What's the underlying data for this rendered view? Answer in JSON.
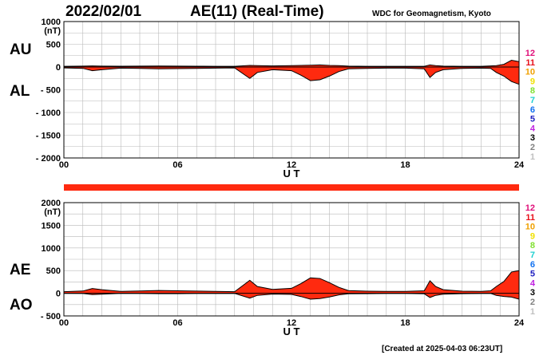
{
  "header": {
    "date": "2022/02/01",
    "title": "AE(11) (Real-Time)",
    "source": "WDC for Geomagnetism, Kyoto"
  },
  "footer": {
    "created": "[Created at 2025-04-03 06:23UT]"
  },
  "legend_levels": [
    {
      "label": "12",
      "color": "#e0107a"
    },
    {
      "label": "11",
      "color": "#e8101a"
    },
    {
      "label": "10",
      "color": "#f0a000"
    },
    {
      "label": "9",
      "color": "#f0e000"
    },
    {
      "label": "8",
      "color": "#80e030"
    },
    {
      "label": "7",
      "color": "#20d0d0"
    },
    {
      "label": "6",
      "color": "#1070f0"
    },
    {
      "label": "5",
      "color": "#2020c0"
    },
    {
      "label": "4",
      "color": "#c020e0"
    },
    {
      "label": "3",
      "color": "#000000"
    },
    {
      "label": "2",
      "color": "#808080"
    },
    {
      "label": "1",
      "color": "#c0c0c0"
    }
  ],
  "chart_data": [
    {
      "type": "area",
      "panel": "top",
      "labels": [
        "AU",
        "AL"
      ],
      "unit_label": "(nT)",
      "xlabel": "U T",
      "xticks": [
        "00",
        "06",
        "12",
        "18",
        "24"
      ],
      "xlim": [
        0,
        24
      ],
      "ylim": [
        -2000,
        1000
      ],
      "yticks": [
        "1000",
        "500",
        "0",
        "- 500",
        "- 1000",
        "- 1500",
        "- 2000"
      ],
      "fill_color": "#ff2a0f",
      "series": [
        {
          "name": "AU",
          "x": [
            0,
            1,
            1.5,
            2,
            3,
            4,
            5,
            6,
            7,
            8,
            9,
            9.8,
            10.2,
            11,
            12,
            12.5,
            13,
            13.5,
            14,
            14.5,
            15,
            16,
            17,
            18,
            19,
            19.3,
            19.6,
            20,
            21,
            22,
            22.5,
            22.8,
            23.2,
            23.6,
            24
          ],
          "values": [
            15,
            20,
            25,
            20,
            18,
            20,
            22,
            20,
            18,
            15,
            15,
            35,
            30,
            25,
            30,
            35,
            40,
            45,
            35,
            30,
            20,
            15,
            15,
            15,
            15,
            45,
            30,
            20,
            15,
            15,
            25,
            30,
            60,
            150,
            120
          ]
        },
        {
          "name": "AL",
          "x": [
            0,
            1,
            1.5,
            2,
            3,
            4,
            5,
            6,
            7,
            8,
            9,
            9.8,
            10.2,
            11,
            12,
            12.5,
            13,
            13.5,
            14,
            14.5,
            15,
            16,
            17,
            18,
            19,
            19.3,
            19.6,
            20,
            21,
            22,
            22.5,
            22.8,
            23.2,
            23.6,
            24
          ],
          "values": [
            -20,
            -30,
            -80,
            -60,
            -25,
            -30,
            -40,
            -35,
            -30,
            -25,
            -20,
            -250,
            -120,
            -60,
            -80,
            -180,
            -300,
            -280,
            -200,
            -100,
            -40,
            -30,
            -25,
            -25,
            -40,
            -230,
            -120,
            -60,
            -30,
            -25,
            -30,
            -120,
            -200,
            -320,
            -380
          ]
        }
      ]
    },
    {
      "type": "area",
      "panel": "bottom",
      "labels": [
        "AE",
        "AO"
      ],
      "unit_label": "(nT)",
      "xlabel": "U T",
      "xticks": [
        "00",
        "06",
        "12",
        "18",
        "24"
      ],
      "xlim": [
        0,
        24
      ],
      "ylim": [
        -500,
        2000
      ],
      "yticks": [
        "2000",
        "1500",
        "1000",
        "500",
        "0",
        "- 500"
      ],
      "fill_color": "#ff2a0f",
      "series": [
        {
          "name": "AE",
          "x": [
            0,
            1,
            1.5,
            2,
            3,
            4,
            5,
            6,
            7,
            8,
            9,
            9.8,
            10.2,
            11,
            12,
            12.5,
            13,
            13.5,
            14,
            14.5,
            15,
            16,
            17,
            18,
            19,
            19.3,
            19.6,
            20,
            21,
            22,
            22.5,
            22.8,
            23.2,
            23.6,
            24
          ],
          "values": [
            35,
            50,
            105,
            80,
            43,
            50,
            62,
            55,
            48,
            40,
            35,
            285,
            150,
            85,
            110,
            215,
            340,
            325,
            235,
            130,
            60,
            45,
            40,
            40,
            55,
            275,
            150,
            80,
            45,
            40,
            55,
            150,
            260,
            470,
            500
          ]
        },
        {
          "name": "AO",
          "x": [
            0,
            1,
            1.5,
            2,
            3,
            4,
            5,
            6,
            7,
            8,
            9,
            9.8,
            10.2,
            11,
            12,
            12.5,
            13,
            13.5,
            14,
            14.5,
            15,
            16,
            17,
            18,
            19,
            19.3,
            19.6,
            20,
            21,
            22,
            22.5,
            22.8,
            23.2,
            23.6,
            24
          ],
          "values": [
            -2,
            -5,
            -28,
            -20,
            -4,
            -5,
            -9,
            -8,
            -6,
            -5,
            -3,
            -108,
            -45,
            -18,
            -25,
            -73,
            -130,
            -118,
            -83,
            -35,
            -10,
            -8,
            -5,
            -5,
            -13,
            -93,
            -45,
            -20,
            -8,
            -5,
            -3,
            -45,
            -70,
            -85,
            -130
          ]
        }
      ]
    }
  ]
}
